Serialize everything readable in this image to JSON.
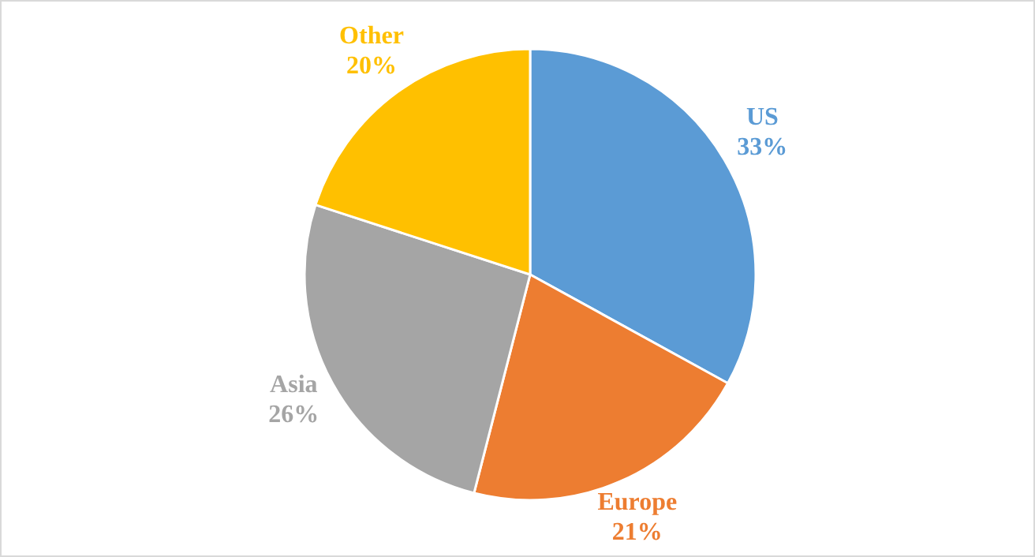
{
  "chart_data": {
    "type": "pie",
    "categories": [
      "US",
      "Europe",
      "Asia",
      "Other"
    ],
    "values": [
      33,
      21,
      26,
      20
    ],
    "colors": [
      "#5b9bd5",
      "#ed7d31",
      "#a5a5a5",
      "#ffc000"
    ],
    "value_labels": [
      "33%",
      "21%",
      "26%",
      "20%"
    ]
  }
}
